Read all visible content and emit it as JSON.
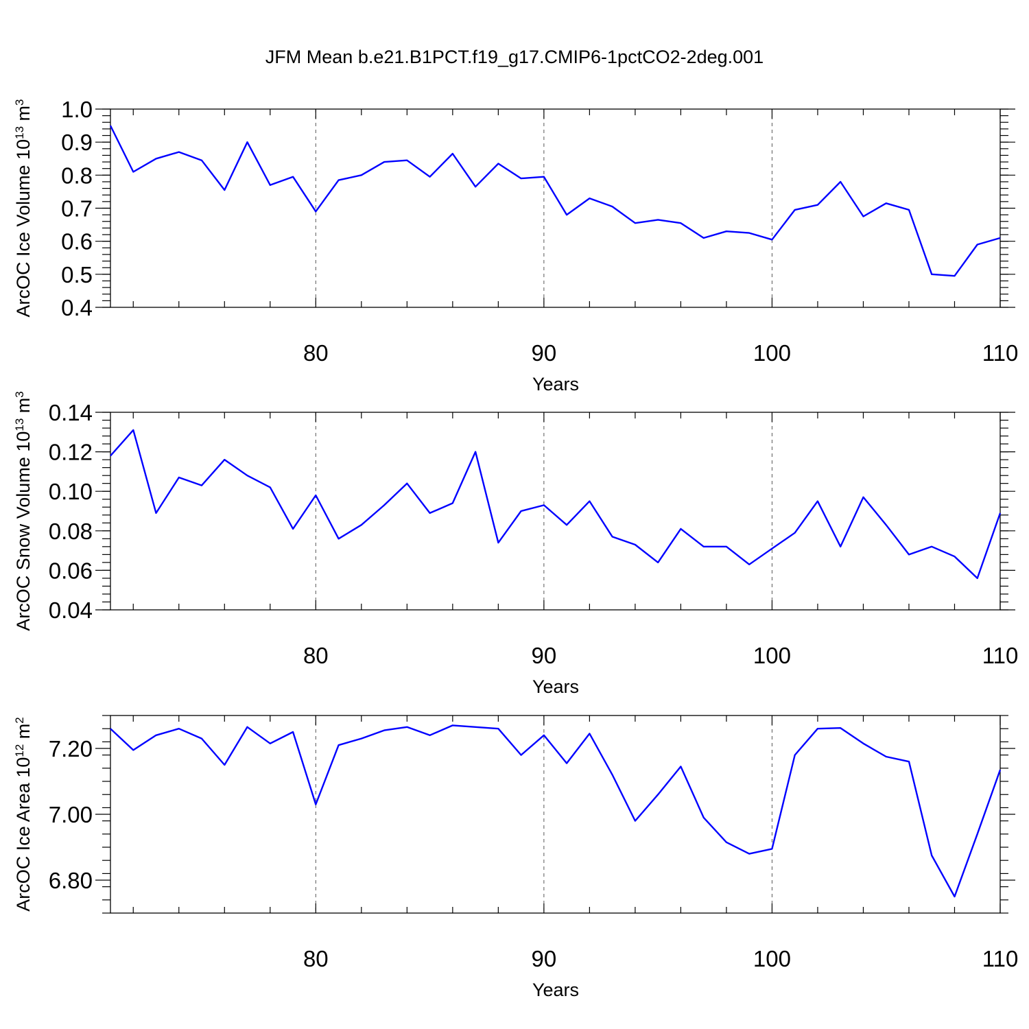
{
  "title": "JFM Mean b.e21.B1PCT.f19_g17.CMIP6-1pctCO2-2deg.001",
  "colors": {
    "line": "#0000ff",
    "axis": "#000000",
    "grid": "#555555"
  },
  "chart_data": [
    {
      "type": "line",
      "name": "ice-volume",
      "ylabel": "ArcOC Ice Volume 10",
      "ylabel_exp": "13",
      "ylabel_unit": "m",
      "ylabel_unit_exp": "3",
      "xlabel": "Years",
      "xlim": [
        71,
        110
      ],
      "ylim": [
        0.4,
        1.0
      ],
      "x_ticks": [
        80,
        90,
        100,
        110
      ],
      "x_tick_labels": [
        "80",
        "90",
        "100",
        "110"
      ],
      "x_gridlines": [
        80,
        90,
        100
      ],
      "y_ticks": [
        0.4,
        0.5,
        0.6,
        0.7,
        0.8,
        0.9,
        1.0
      ],
      "y_tick_labels": [
        "0.4",
        "0.5",
        "0.6",
        "0.7",
        "0.8",
        "0.9",
        "1.0"
      ],
      "y_minor_step": 0.02,
      "x": [
        71,
        72,
        73,
        74,
        75,
        76,
        77,
        78,
        79,
        80,
        81,
        82,
        83,
        84,
        85,
        86,
        87,
        88,
        89,
        90,
        91,
        92,
        93,
        94,
        95,
        96,
        97,
        98,
        99,
        100,
        101,
        102,
        103,
        104,
        105,
        106,
        107,
        108,
        109,
        110
      ],
      "values": [
        0.95,
        0.81,
        0.85,
        0.87,
        0.845,
        0.755,
        0.9,
        0.77,
        0.795,
        0.69,
        0.785,
        0.8,
        0.84,
        0.845,
        0.795,
        0.865,
        0.765,
        0.835,
        0.79,
        0.795,
        0.68,
        0.73,
        0.705,
        0.655,
        0.665,
        0.655,
        0.61,
        0.63,
        0.625,
        0.605,
        0.695,
        0.71,
        0.78,
        0.675,
        0.715,
        0.695,
        0.5,
        0.495,
        0.59,
        0.61
      ]
    },
    {
      "type": "line",
      "name": "snow-volume",
      "ylabel": "ArcOC Snow Volume 10",
      "ylabel_exp": "13",
      "ylabel_unit": "m",
      "ylabel_unit_exp": "3",
      "xlabel": "Years",
      "xlim": [
        71,
        110
      ],
      "ylim": [
        0.04,
        0.14
      ],
      "x_ticks": [
        80,
        90,
        100,
        110
      ],
      "x_tick_labels": [
        "80",
        "90",
        "100",
        "110"
      ],
      "x_gridlines": [
        80,
        90,
        100
      ],
      "y_ticks": [
        0.04,
        0.06,
        0.08,
        0.1,
        0.12,
        0.14
      ],
      "y_tick_labels": [
        "0.04",
        "0.06",
        "0.08",
        "0.10",
        "0.12",
        "0.14"
      ],
      "y_minor_step": 0.004,
      "x": [
        71,
        72,
        73,
        74,
        75,
        76,
        77,
        78,
        79,
        80,
        81,
        82,
        83,
        84,
        85,
        86,
        87,
        88,
        89,
        90,
        91,
        92,
        93,
        94,
        95,
        96,
        97,
        98,
        99,
        100,
        101,
        102,
        103,
        104,
        105,
        106,
        107,
        108,
        109,
        110
      ],
      "values": [
        0.118,
        0.131,
        0.089,
        0.107,
        0.103,
        0.116,
        0.108,
        0.102,
        0.081,
        0.098,
        0.076,
        0.083,
        0.093,
        0.104,
        0.089,
        0.094,
        0.12,
        0.074,
        0.09,
        0.093,
        0.083,
        0.095,
        0.077,
        0.073,
        0.064,
        0.081,
        0.072,
        0.072,
        0.063,
        0.071,
        0.079,
        0.095,
        0.072,
        0.097,
        0.083,
        0.068,
        0.072,
        0.067,
        0.056,
        0.089
      ]
    },
    {
      "type": "line",
      "name": "ice-area",
      "ylabel": "ArcOC Ice Area 10",
      "ylabel_exp": "12",
      "ylabel_unit": "m",
      "ylabel_unit_exp": "2",
      "xlabel": "Years",
      "xlim": [
        71,
        110
      ],
      "ylim": [
        6.7,
        7.3
      ],
      "x_ticks": [
        80,
        90,
        100,
        110
      ],
      "x_tick_labels": [
        "80",
        "90",
        "100",
        "110"
      ],
      "x_gridlines": [
        80,
        90,
        100
      ],
      "y_ticks": [
        6.8,
        7.0,
        7.2
      ],
      "y_tick_labels": [
        "6.80",
        "7.00",
        "7.20"
      ],
      "y_minor_step": 0.04,
      "x": [
        71,
        72,
        73,
        74,
        75,
        76,
        77,
        78,
        79,
        80,
        81,
        82,
        83,
        84,
        85,
        86,
        87,
        88,
        89,
        90,
        91,
        92,
        93,
        94,
        95,
        96,
        97,
        98,
        99,
        100,
        101,
        102,
        103,
        104,
        105,
        106,
        107,
        108,
        109,
        110
      ],
      "values": [
        7.26,
        7.195,
        7.24,
        7.26,
        7.23,
        7.15,
        7.265,
        7.215,
        7.25,
        7.03,
        7.21,
        7.23,
        7.255,
        7.265,
        7.24,
        7.27,
        7.265,
        7.26,
        7.18,
        7.24,
        7.155,
        7.245,
        7.12,
        6.98,
        7.06,
        7.145,
        6.99,
        6.915,
        6.88,
        6.895,
        7.18,
        7.26,
        7.262,
        7.215,
        7.175,
        7.16,
        6.875,
        6.75,
        6.94,
        7.135
      ]
    }
  ]
}
